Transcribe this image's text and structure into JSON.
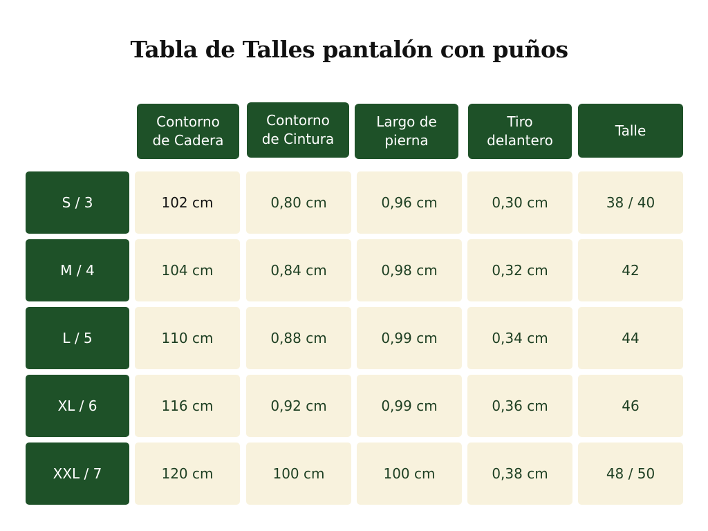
{
  "title": "Tabla de Talles pantalón con puños",
  "columns": [
    [
      "Contorno",
      "de Cadera"
    ],
    [
      "Contorno",
      "de Cintura"
    ],
    [
      "Largo de",
      "pierna"
    ],
    [
      "Tiro",
      "delantero"
    ],
    [
      "Talle"
    ]
  ],
  "rows": [
    {
      "size": "S / 3",
      "cells": [
        "102 cm",
        "0,80 cm",
        "0,96 cm",
        "0,30 cm",
        "38 / 40"
      ]
    },
    {
      "size": "M / 4",
      "cells": [
        "104 cm",
        "0,84 cm",
        "0,98 cm",
        "0,32 cm",
        "42"
      ]
    },
    {
      "size": "L / 5",
      "cells": [
        "110 cm",
        "0,88 cm",
        "0,99 cm",
        "0,34 cm",
        "44"
      ]
    },
    {
      "size": "XL / 6",
      "cells": [
        "116 cm",
        "0,92 cm",
        "0,99 cm",
        "0,36 cm",
        "46"
      ]
    },
    {
      "size": "XXL / 7",
      "cells": [
        "120 cm",
        "100 cm",
        "100 cm",
        "0,38 cm",
        "48 / 50"
      ]
    }
  ],
  "colors": {
    "header_bg": "#1e5128",
    "cell_bg": "#f8f2dd"
  }
}
